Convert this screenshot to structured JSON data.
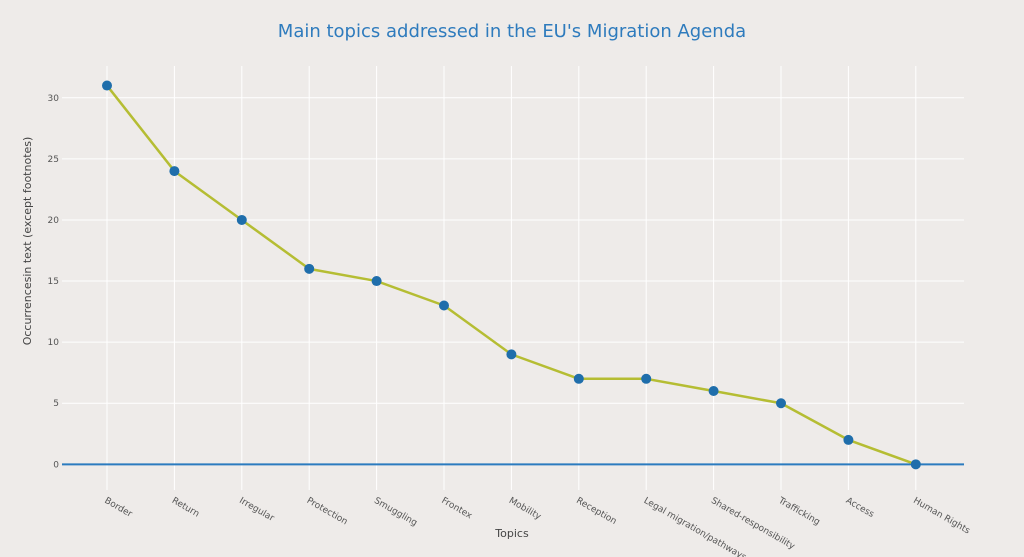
{
  "chart_data": {
    "type": "line",
    "title": "Main topics addressed in the EU's Migration Agenda",
    "xlabel": "Topics",
    "ylabel": "Occurrencesin text (except footnotes)",
    "categories": [
      "Border",
      "Return",
      "Irregular",
      "Protection",
      "Smuggling",
      "Frontex",
      "Mobility",
      "Reception",
      "Legal migration/pathways",
      "Shared-responsibility",
      "Trafficking",
      "Access",
      "Human Rights"
    ],
    "values": [
      31,
      24,
      20,
      16,
      15,
      13,
      9,
      7,
      7,
      6,
      5,
      2,
      0
    ],
    "yticks": [
      0,
      5,
      10,
      15,
      20,
      25,
      30
    ],
    "ylim": [
      -2.1,
      32.6
    ],
    "grid": true,
    "legend": "none"
  },
  "colors": {
    "background": "#eeebe9",
    "line": "#b5bd33",
    "marker": "#1f6eab",
    "zero_line": "#2b7bbf",
    "title": "#2e7bbd",
    "grid": "#ffffff"
  }
}
